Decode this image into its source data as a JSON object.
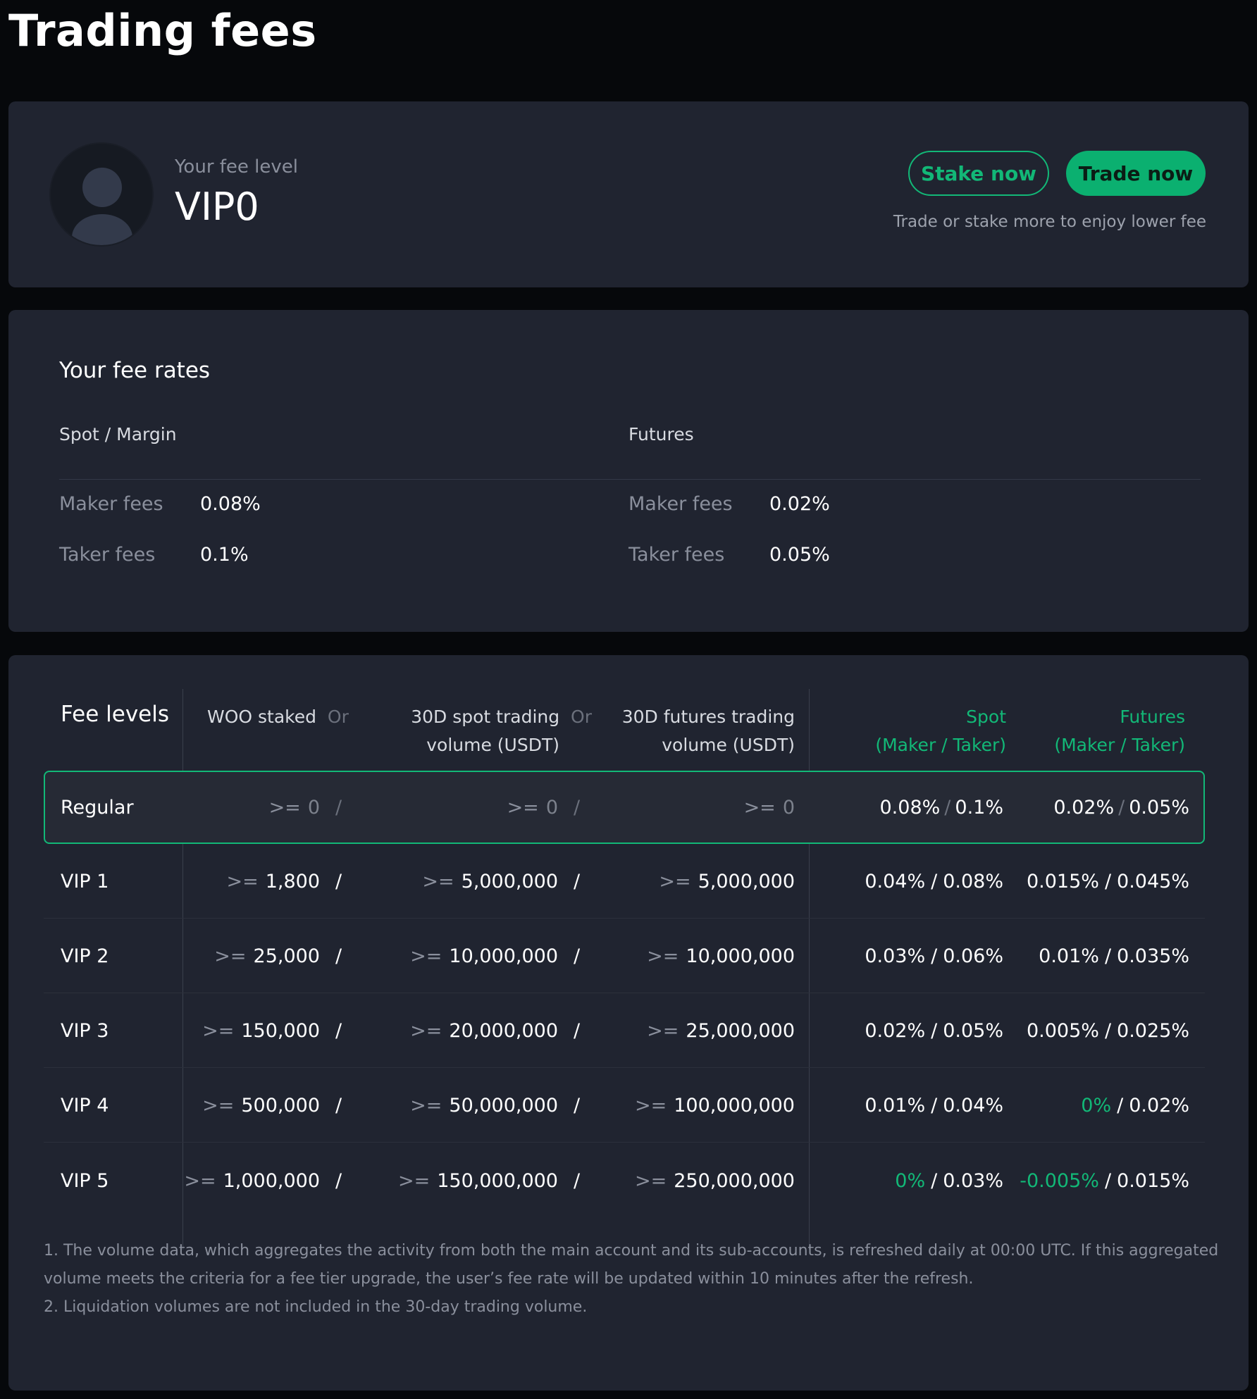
{
  "page": {
    "title": "Trading fees"
  },
  "level_card": {
    "fee_level_label": "Your fee level",
    "fee_level_value": "VIP0",
    "stake_button": "Stake now",
    "trade_button": "Trade now",
    "hint": "Trade or stake more to enjoy lower fee"
  },
  "rates_card": {
    "title": "Your fee rates",
    "spot": {
      "heading": "Spot / Margin",
      "maker_label": "Maker fees",
      "maker_value": "0.08%",
      "taker_label": "Taker fees",
      "taker_value": "0.1%"
    },
    "futures": {
      "heading": "Futures",
      "maker_label": "Maker fees",
      "maker_value": "0.02%",
      "taker_label": "Taker fees",
      "taker_value": "0.05%"
    }
  },
  "levels_card": {
    "title": "Fee levels",
    "headers": {
      "woo_staked": "WOO staked",
      "or1": "Or",
      "spot_volume_line1": "30D spot trading",
      "or2": "Or",
      "spot_volume_line2": "volume (USDT)",
      "futures_volume_line1": "30D futures trading",
      "futures_volume_line2": "volume (USDT)",
      "spot_line1": "Spot",
      "spot_line2": "(Maker / Taker)",
      "futures_line1": "Futures",
      "futures_line2": "(Maker / Taker)"
    },
    "ge": ">=",
    "slash": "/",
    "rows": [
      {
        "level": "Regular",
        "woo": "0",
        "spot_vol": "0",
        "fut_vol": "0",
        "spot_maker": "0.08%",
        "spot_taker": "0.1%",
        "fut_maker": "0.02%",
        "fut_taker": "0.05%"
      },
      {
        "level": "VIP 1",
        "woo": "1,800",
        "spot_vol": "5,000,000",
        "fut_vol": "5,000,000",
        "spot_maker": "0.04%",
        "spot_taker": "0.08%",
        "fut_maker": "0.015%",
        "fut_taker": "0.045%"
      },
      {
        "level": "VIP 2",
        "woo": "25,000",
        "spot_vol": "10,000,000",
        "fut_vol": "10,000,000",
        "spot_maker": "0.03%",
        "spot_taker": "0.06%",
        "fut_maker": "0.01%",
        "fut_taker": "0.035%"
      },
      {
        "level": "VIP 3",
        "woo": "150,000",
        "spot_vol": "20,000,000",
        "fut_vol": "25,000,000",
        "spot_maker": "0.02%",
        "spot_taker": "0.05%",
        "fut_maker": "0.005%",
        "fut_taker": "0.025%"
      },
      {
        "level": "VIP 4",
        "woo": "500,000",
        "spot_vol": "50,000,000",
        "fut_vol": "100,000,000",
        "spot_maker": "0.01%",
        "spot_taker": "0.04%",
        "fut_maker": "0%",
        "fut_taker": "0.02%"
      },
      {
        "level": "VIP 5",
        "woo": "1,000,000",
        "spot_vol": "150,000,000",
        "fut_vol": "250,000,000",
        "spot_maker": "0%",
        "spot_taker": "0.03%",
        "fut_maker": "-0.005%",
        "fut_taker": "0.015%"
      }
    ],
    "notes": [
      "1. The volume data, which aggregates the activity from both the main account and its sub-accounts, is refreshed daily at 00:00 UTC. If this aggregated volume meets the criteria for a fee tier upgrade, the user’s fee rate will be updated within 10 minutes after the refresh.",
      "2. Liquidation volumes are not included in the 30-day trading volume."
    ]
  },
  "colors": {
    "accent": "#12b877",
    "card": "#202430",
    "background": "#06080b"
  }
}
